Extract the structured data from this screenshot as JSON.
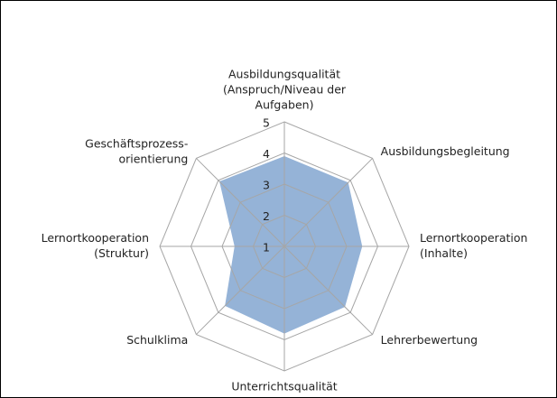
{
  "chart_data": {
    "type": "radar",
    "categories": [
      [
        "Ausbildungsqualität",
        "(Anspruch/Niveau der",
        "Aufgaben)"
      ],
      [
        "Ausbildungsbegleitung"
      ],
      [
        "Lernortkooperation",
        "(Inhalte)"
      ],
      [
        "Lehrerbewertung"
      ],
      [
        "Unterrichtsqualität"
      ],
      [
        "Schulklima"
      ],
      [
        "Lernortkooperation",
        "(Struktur)"
      ],
      [
        "Geschäftsprozess-",
        "orientierung"
      ]
    ],
    "values": [
      3.9,
      3.9,
      3.5,
      3.75,
      3.8,
      3.7,
      2.6,
      3.95
    ],
    "color": "#95b3d7",
    "ylim": [
      1,
      5
    ],
    "yticks": [
      1,
      2,
      3,
      4,
      5
    ],
    "grid": true
  }
}
